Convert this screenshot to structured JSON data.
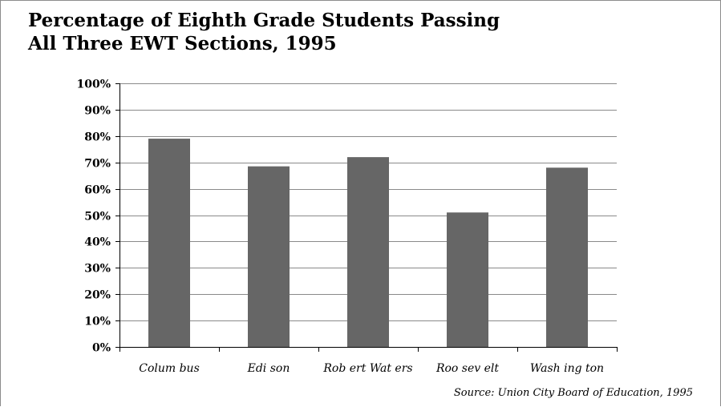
{
  "chart_data": {
    "type": "bar",
    "title": "Percentage of Eighth Grade Students Passing",
    "subtitle": "All Three EWT Sections, 1995",
    "categories": [
      "Colum bus",
      "Edi son",
      "Rob ert Wat ers",
      "Roo sev elt",
      "Wash ing ton"
    ],
    "values": [
      79,
      68.5,
      72,
      51,
      68
    ],
    "y_ticks": [
      "0%",
      "10%",
      "20%",
      "30%",
      "40%",
      "50%",
      "60%",
      "70%",
      "80%",
      "90%",
      "100%"
    ],
    "ylim": [
      0,
      100
    ],
    "grid": true,
    "legend": "none",
    "source": "Source:  Union City Board of Education, 1995"
  },
  "colors": {
    "bar": "#666666",
    "grid": "#8a8a8a",
    "axis": "#000000",
    "text": "#000000"
  }
}
